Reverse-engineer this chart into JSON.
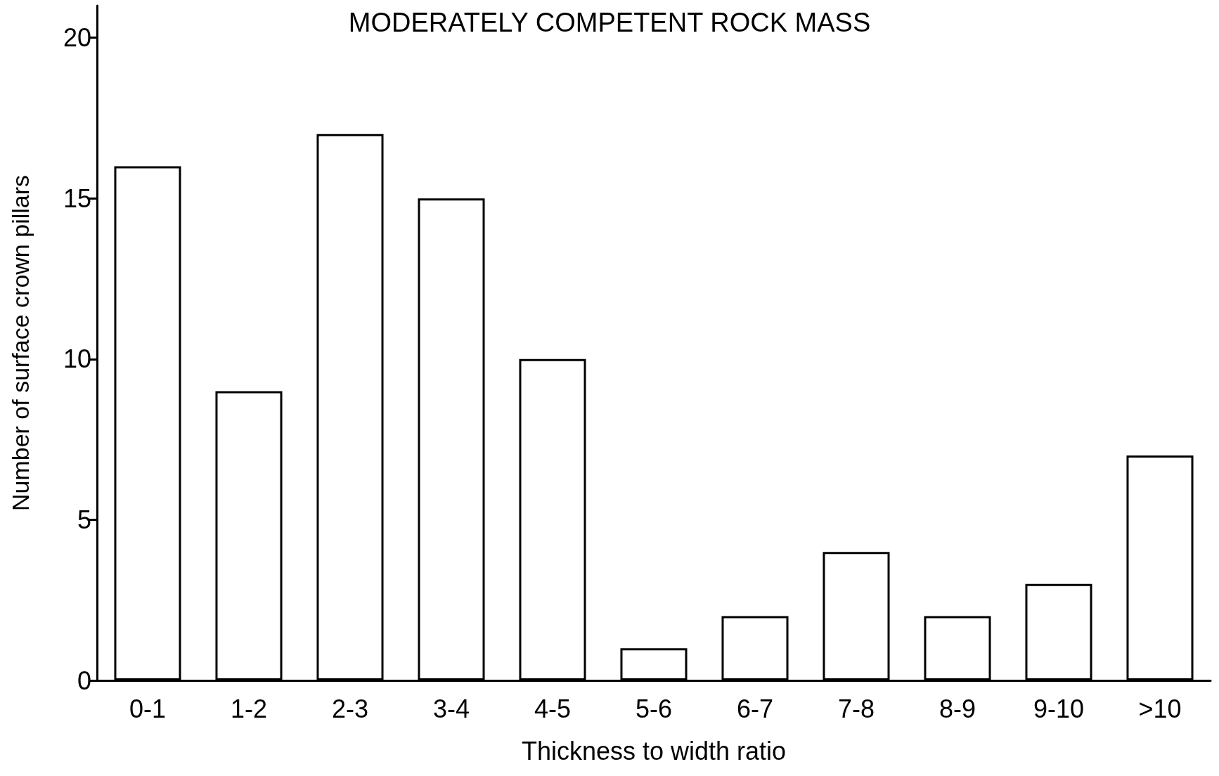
{
  "chart_data": {
    "type": "bar",
    "title": "MODERATELY COMPETENT ROCK MASS",
    "xlabel": "Thickness to width ratio",
    "ylabel": "Number of surface crown pillars",
    "categories": [
      "0-1",
      "1-2",
      "2-3",
      "3-4",
      "4-5",
      "5-6",
      "6-7",
      "7-8",
      "8-9",
      "9-10",
      ">10"
    ],
    "values": [
      16,
      9,
      17,
      15,
      10,
      1,
      2,
      4,
      2,
      3,
      7
    ],
    "color": "#ffffff",
    "ylim": [
      0,
      21
    ],
    "yticks": [
      0,
      5,
      10,
      15,
      20
    ],
    "grid": false
  }
}
